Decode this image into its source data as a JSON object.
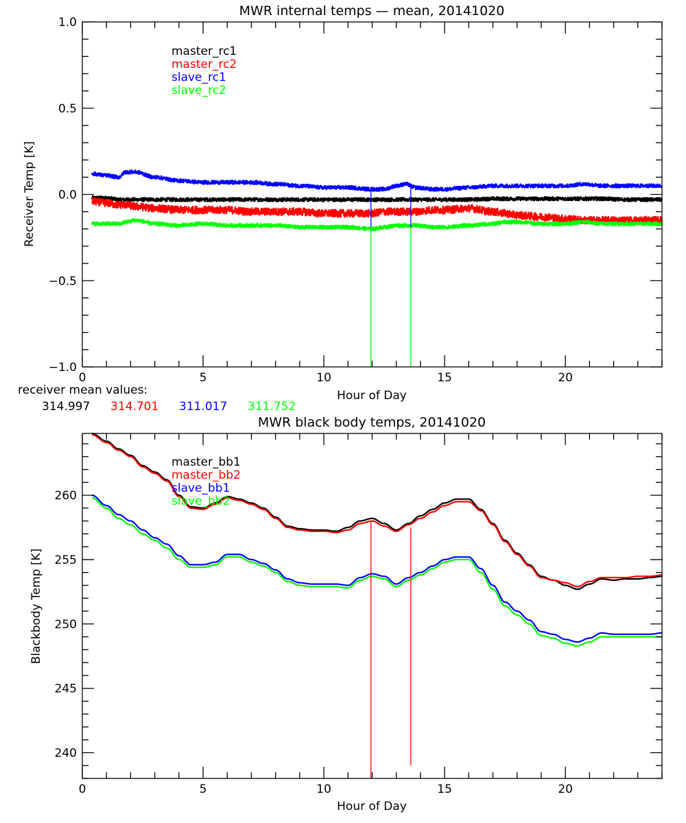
{
  "chart_data": [
    {
      "type": "line",
      "title": "MWR internal temps — mean, 20141020",
      "xlabel": "Hour of Day",
      "ylabel": "Receiver Temp [K]",
      "xlim": [
        0,
        24
      ],
      "ylim": [
        -1.0,
        1.0
      ],
      "xticks": [
        "0",
        "5",
        "10",
        "15",
        "20"
      ],
      "xtick_values": [
        0,
        5,
        10,
        15,
        20
      ],
      "yticks": [
        "-1.0",
        "-0.5",
        "0.0",
        "0.5",
        "1.0"
      ],
      "ytick_values": [
        -1.0,
        -0.5,
        0.0,
        0.5,
        1.0
      ],
      "grid": false,
      "legend_position": "top-left",
      "noise_band": true,
      "x": [
        0.4,
        1.0,
        1.5,
        1.8,
        2.2,
        3.0,
        4.0,
        5.0,
        6.0,
        7.0,
        8.0,
        9.0,
        10.0,
        11.0,
        12.0,
        12.5,
        13.0,
        13.4,
        13.8,
        14.5,
        15.0,
        16.0,
        17.0,
        17.5,
        18.0,
        19.0,
        20.0,
        20.8,
        21.5,
        22.5,
        24.0
      ],
      "series": [
        {
          "name": "master_rc1",
          "color": "#000000",
          "values": [
            -0.02,
            -0.02,
            -0.03,
            -0.03,
            -0.03,
            -0.03,
            -0.03,
            -0.03,
            -0.03,
            -0.03,
            -0.03,
            -0.03,
            -0.03,
            -0.03,
            -0.03,
            -0.03,
            -0.03,
            -0.03,
            -0.03,
            -0.03,
            -0.03,
            -0.03,
            -0.025,
            -0.025,
            -0.025,
            -0.025,
            -0.025,
            -0.025,
            -0.025,
            -0.03,
            -0.03
          ]
        },
        {
          "name": "master_rc2",
          "color": "#ff0000",
          "values": [
            -0.04,
            -0.05,
            -0.06,
            -0.06,
            -0.07,
            -0.08,
            -0.09,
            -0.09,
            -0.09,
            -0.1,
            -0.1,
            -0.1,
            -0.11,
            -0.11,
            -0.11,
            -0.1,
            -0.1,
            -0.1,
            -0.1,
            -0.09,
            -0.09,
            -0.08,
            -0.1,
            -0.11,
            -0.12,
            -0.13,
            -0.14,
            -0.15,
            -0.15,
            -0.15,
            -0.15
          ]
        },
        {
          "name": "slave_rc1",
          "color": "#0000ff",
          "values": [
            0.12,
            0.11,
            0.1,
            0.13,
            0.13,
            0.1,
            0.08,
            0.07,
            0.07,
            0.07,
            0.06,
            0.05,
            0.04,
            0.04,
            0.03,
            0.03,
            0.05,
            0.06,
            0.04,
            0.03,
            0.03,
            0.04,
            0.05,
            0.05,
            0.05,
            0.05,
            0.05,
            0.06,
            0.05,
            0.05,
            0.05
          ]
        },
        {
          "name": "slave_rc2",
          "color": "#00ff00",
          "values": [
            -0.17,
            -0.17,
            -0.17,
            -0.16,
            -0.15,
            -0.17,
            -0.18,
            -0.17,
            -0.18,
            -0.18,
            -0.18,
            -0.19,
            -0.19,
            -0.19,
            -0.2,
            -0.19,
            -0.18,
            -0.18,
            -0.18,
            -0.19,
            -0.19,
            -0.18,
            -0.17,
            -0.16,
            -0.16,
            -0.17,
            -0.17,
            -0.16,
            -0.17,
            -0.17,
            -0.17
          ]
        }
      ],
      "spikes": [
        {
          "x": 11.95,
          "color_top": "#0000ff",
          "color_bottom": "#00ff00",
          "from": 0.03,
          "to": -1.0
        },
        {
          "x": 13.6,
          "color_top": "#0000ff",
          "color_bottom": "#00ff00",
          "from": 0.05,
          "to": -1.0
        }
      ]
    },
    {
      "type": "line",
      "title": "MWR black body temps, 20141020",
      "xlabel": "Hour of Day",
      "ylabel": "Blackbody Temp [K]",
      "xlim": [
        0,
        24
      ],
      "ylim": [
        238.0,
        264.8
      ],
      "xticks": [
        "0",
        "5",
        "10",
        "15",
        "20"
      ],
      "xtick_values": [
        0,
        5,
        10,
        15,
        20
      ],
      "yticks": [
        "240",
        "245",
        "250",
        "255",
        "260"
      ],
      "ytick_values": [
        240,
        245,
        250,
        255,
        260
      ],
      "grid": false,
      "legend_position": "top-left",
      "x": [
        0.4,
        1.0,
        1.5,
        2.0,
        2.5,
        3.0,
        3.5,
        4.0,
        4.5,
        5.0,
        5.5,
        6.0,
        6.5,
        7.0,
        7.5,
        8.0,
        8.5,
        9.0,
        9.5,
        10.0,
        10.5,
        11.0,
        11.5,
        12.0,
        12.5,
        13.0,
        13.5,
        14.0,
        14.5,
        15.0,
        15.5,
        16.0,
        16.5,
        17.0,
        17.5,
        18.0,
        18.5,
        19.0,
        19.5,
        20.0,
        20.5,
        21.0,
        21.5,
        22.0,
        22.5,
        23.0,
        23.5,
        24.0
      ],
      "series": [
        {
          "name": "master_bb1",
          "color": "#000000",
          "values": [
            264.8,
            264.2,
            263.6,
            263.1,
            262.3,
            261.8,
            261.2,
            260.0,
            259.1,
            259.0,
            259.4,
            259.9,
            259.7,
            259.4,
            259.0,
            258.3,
            257.6,
            257.4,
            257.3,
            257.3,
            257.2,
            257.5,
            258.0,
            258.2,
            257.8,
            257.3,
            257.8,
            258.4,
            258.9,
            259.4,
            259.7,
            259.7,
            258.9,
            257.8,
            256.5,
            255.5,
            254.6,
            253.7,
            253.4,
            253.0,
            252.7,
            253.1,
            253.5,
            253.4,
            253.5,
            253.5,
            253.6,
            253.7
          ]
        },
        {
          "name": "master_bb2",
          "color": "#ff0000",
          "values": [
            264.7,
            264.1,
            263.5,
            263.0,
            262.2,
            261.7,
            261.1,
            259.9,
            259.0,
            258.9,
            259.3,
            259.8,
            259.6,
            259.3,
            258.9,
            258.2,
            257.5,
            257.3,
            257.2,
            257.2,
            257.1,
            257.3,
            257.8,
            258.0,
            257.6,
            257.2,
            257.7,
            258.2,
            258.7,
            259.2,
            259.5,
            259.5,
            258.8,
            257.7,
            256.4,
            255.4,
            254.5,
            253.6,
            253.4,
            253.2,
            252.9,
            253.3,
            253.6,
            253.6,
            253.6,
            253.7,
            253.7,
            253.8
          ]
        },
        {
          "name": "slave_bb1",
          "color": "#0000ff",
          "values": [
            260.0,
            259.2,
            258.5,
            258.0,
            257.3,
            256.7,
            256.2,
            255.3,
            254.6,
            254.6,
            254.8,
            255.4,
            255.4,
            255.0,
            254.7,
            254.2,
            253.5,
            253.2,
            253.1,
            253.1,
            253.1,
            253.0,
            253.6,
            253.9,
            253.7,
            253.1,
            253.6,
            254.0,
            254.5,
            255.0,
            255.2,
            255.2,
            254.3,
            253.0,
            251.7,
            251.0,
            250.3,
            249.4,
            249.2,
            248.8,
            248.6,
            248.9,
            249.3,
            249.2,
            249.2,
            249.2,
            249.2,
            249.3
          ]
        },
        {
          "name": "slave_bb2",
          "color": "#00ff00",
          "values": [
            259.8,
            259.0,
            258.2,
            257.7,
            257.0,
            256.5,
            255.9,
            255.0,
            254.4,
            254.4,
            254.6,
            255.2,
            255.2,
            254.8,
            254.5,
            254.0,
            253.3,
            253.0,
            252.9,
            252.9,
            252.9,
            252.8,
            253.4,
            253.7,
            253.5,
            252.9,
            253.4,
            253.8,
            254.3,
            254.8,
            255.0,
            255.0,
            254.0,
            252.7,
            251.4,
            250.7,
            250.0,
            249.1,
            248.9,
            248.5,
            248.3,
            248.6,
            249.0,
            249.0,
            249.0,
            249.0,
            249.0,
            249.0
          ]
        }
      ],
      "spikes": [
        {
          "x": 11.95,
          "color_top": "#ff0000",
          "color_bottom": "#ff0000",
          "from": 258.0,
          "to": 238.0
        },
        {
          "x": 13.6,
          "color_top": "#ff0000",
          "color_bottom": "#ff0000",
          "from": 257.5,
          "to": 239.0
        }
      ]
    }
  ],
  "receiver_mean": {
    "label": "receiver mean values:",
    "values": [
      {
        "text": "314.997",
        "color": "#000000"
      },
      {
        "text": "314.701",
        "color": "#ff0000"
      },
      {
        "text": "311.017",
        "color": "#0000ff"
      },
      {
        "text": "311.752",
        "color": "#00ff00"
      }
    ]
  }
}
